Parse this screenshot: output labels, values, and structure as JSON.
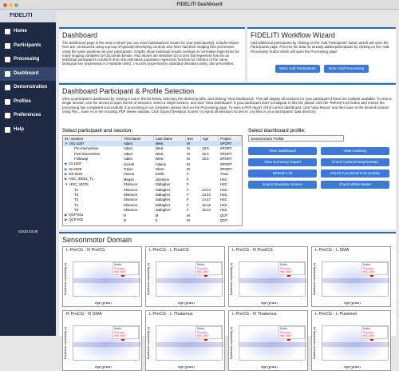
{
  "window_title": "FIDELITI Dashboard",
  "sidebar": {
    "logo": "FIDELITI",
    "nav": [
      "Home",
      "Participants",
      "Processing",
      "Dashboard",
      "Demonstration",
      "Profiles",
      "Preferences",
      "Help"
    ],
    "version": "v2020.03.08"
  },
  "dashboard": {
    "title": "Dashboard",
    "text": "The dashboard page is the area in which you can view individualized results for your participant(s). Graphs shown here are constructed using a group of typically-developing controls who have had their imaging files processed using the same pipelines as your participants. Graphs show individual results overlaid on normative trajectories for many imaging variables by functional domain. Also shown are deviation (z) scores that represent how far an individual participant's results fin from the estimated population regression function for children of the same biological sex (expressed in z-variable units), z-scores (expressed in standard deviation units), and percentiles."
  },
  "wizard": {
    "title": "FIDELITI Workflow Wizard",
    "text": "Add additional participants by clicking on the 'Add Participants' button which will open the Participants page. Process the data for already added participants by clicking on the 'Add Processing' button which will open the Processing page.",
    "buttons": [
      "Next: Add Participants",
      "Next: Add Processing"
    ]
  },
  "selection": {
    "title": "Dashboard Participant & Profile Selection",
    "text": "View a participant's dashboard by clicking a row in the list below, selecting the desired profile, and clicking 'View Dashboard'. This will display all sessions for your participant if there are multiple available. To view a single session, use the arrows to open the list of sessions, select a single session, and click 'View Dashboard'. If your participant does not appear in this list, please click the 'Refresh List' button and ensure the processing has completed successfully. If processing is not complete, please click on the Processing page. To save a PDF report of the current dashboard, click 'View Report' and then save in the desired location using File... Save As in the resulting PDF viewer window. Click 'Export Deviation Scores' to export all deviation scores to .csv files in your participants' data directory.",
    "table_label": "Select participant and session:",
    "columns": [
      "ID / Session",
      "First Name",
      "Last Name",
      "Sex",
      "Age",
      "Project"
    ],
    "rows": [
      [
        "001-1007",
        "Adam",
        "West",
        "M",
        null,
        "SPORT"
      ],
      [
        "Pre-intervention",
        "Adam",
        "West",
        "M",
        "18.9",
        "SPORT"
      ],
      [
        "Post-intervention",
        "Adam",
        "West",
        "M",
        "19.0",
        "SPORT"
      ],
      [
        "Followup",
        "Adam",
        "West",
        "M",
        "19.5",
        "SPORT"
      ],
      [
        "01-1007",
        "Garrett",
        "Adams",
        "M",
        null,
        "SPORT"
      ],
      [
        "01-2039",
        "Travis",
        "Oliver",
        "M",
        null,
        "SPORT"
      ],
      [
        "DS-0223",
        "Vienna",
        "Smith",
        "F",
        null,
        "Treat"
      ],
      [
        "HSC_00001_T1",
        "Megan",
        "Johnston",
        "F",
        null,
        "HSC"
      ],
      [
        "HSC_16376",
        "Shannon",
        "Gallagher",
        "F",
        null,
        "HSC"
      ],
      [
        "T1",
        "Shannon",
        "Gallagher",
        "F",
        "14.43",
        "HSC"
      ],
      [
        "T2",
        "Shannon",
        "Gallagher",
        "F",
        "14.44",
        "HSC"
      ],
      [
        "T3",
        "Shannon",
        "Gallagher",
        "F",
        "14.47",
        "HSC"
      ],
      [
        "T4",
        "Shannon",
        "Gallagher",
        "F",
        "15.19",
        "HSC"
      ],
      [
        "T5",
        "Shannon",
        "Gallagher",
        "F",
        "16.24",
        "HSC"
      ],
      [
        "QCP-001",
        "N",
        "M",
        "M",
        null,
        "QCP"
      ],
      [
        "QCP-002",
        "N",
        "Z",
        "M",
        null,
        "QCP"
      ]
    ],
    "profile_label": "Select dashboard profile:",
    "profile_value": "Sensorimotor Profile",
    "buttons": [
      "View Dashboard",
      "View Anatomy",
      "View Summary Report",
      "Check Cortical Morphometry",
      "Refresh List",
      "Check Functional Connectivity",
      "Export Deviation Scores",
      "Check White Matter"
    ]
  },
  "domain": {
    "title": "Sensorimotor Domain",
    "x_label": "Age (years)",
    "y_label": "Functional connectivity (z)",
    "legend": [
      "Males",
      "Females",
      "001-1007"
    ],
    "plots": [
      "L PreCG - R PreCG",
      "L PreCG - L PostCG",
      "L PreCG - R PostCG",
      "L PreCG - L SMA",
      "R PreCG - R SMA",
      "L PreCG - L Thalamus",
      "L PreCG - R Thalamus",
      "L PreCG - L Putamen"
    ]
  }
}
